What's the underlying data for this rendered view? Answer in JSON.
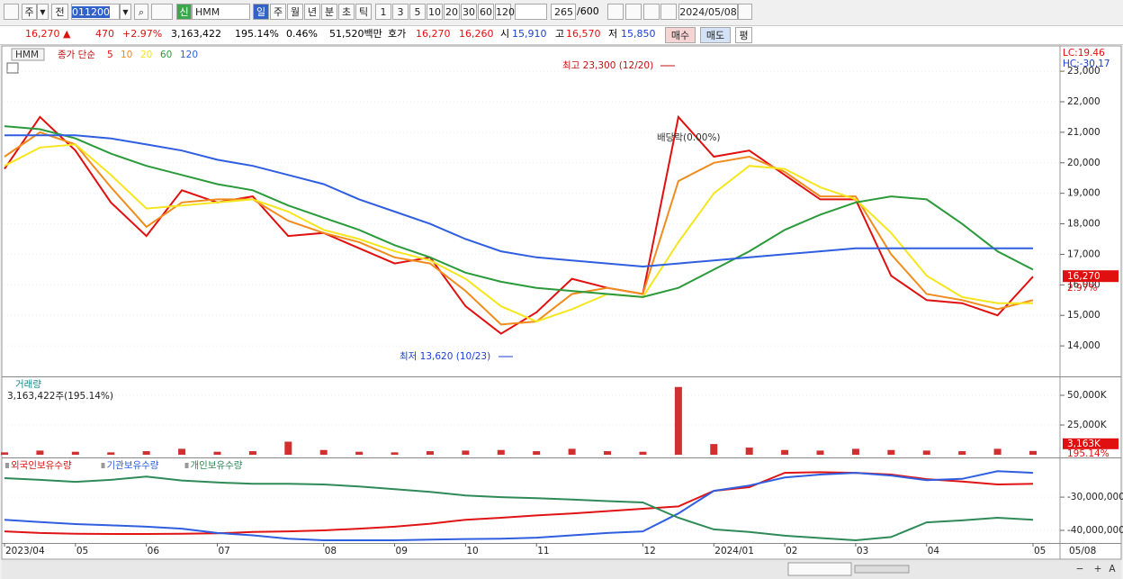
{
  "toolbar": {
    "market": "주",
    "prev": "전",
    "code": "011200",
    "tag": "신",
    "name": "HMM",
    "periods": [
      "일",
      "주",
      "월",
      "년",
      "분",
      "초",
      "틱"
    ],
    "intervals": [
      "1",
      "3",
      "5",
      "10",
      "20",
      "30",
      "60",
      "120"
    ],
    "count": "265",
    "max": "/600",
    "date": "2024/05/08"
  },
  "quote": {
    "price": "16,270 ▲",
    "change": "470",
    "change_pct": "+2.97%",
    "volume": "3,163,422",
    "volume_ratio": "195.14%",
    "turnover": "0.46%",
    "amount": "51,520백만",
    "bid_label": "호가",
    "ask": "16,270",
    "bid": "16,260",
    "open_label": "시",
    "open": "15,910",
    "high_label": "고",
    "high": "16,570",
    "low_label": "저",
    "low": "15,850",
    "buy": "매수",
    "sell": "매도",
    "avg": "평"
  },
  "bottom_bar": {
    "zoom_out": "−",
    "zoom_in": "+",
    "font": "A"
  },
  "chart_data": [
    {
      "type": "line",
      "legend_prefix": "HMM",
      "legend_label": "종가 단순",
      "categories": [
        "2023/04",
        null,
        "05",
        null,
        "06",
        null,
        "07",
        null,
        null,
        "08",
        null,
        "09",
        null,
        "10",
        null,
        "11",
        null,
        null,
        "12",
        null,
        "2024/01",
        null,
        "02",
        null,
        "03",
        null,
        "04",
        null,
        null,
        "05"
      ],
      "x_end_label": "05/08",
      "series": [
        {
          "name": "5",
          "color": "#e01010",
          "values": [
            19800,
            21500,
            20400,
            18700,
            17600,
            19100,
            18700,
            18900,
            17600,
            17700,
            17200,
            16700,
            16900,
            15300,
            14400,
            15100,
            16200,
            15900,
            15700,
            21500,
            20200,
            20400,
            19600,
            18800,
            18800,
            16300,
            15500,
            15400,
            15000,
            16270
          ]
        },
        {
          "name": "10",
          "color": "#f08c1e",
          "values": [
            20200,
            21000,
            20600,
            19200,
            17900,
            18700,
            18800,
            18800,
            18100,
            17700,
            17400,
            16900,
            16700,
            15800,
            14700,
            14800,
            15700,
            15900,
            15700,
            19400,
            20000,
            20200,
            19700,
            18900,
            18900,
            17000,
            15700,
            15500,
            15200,
            15500
          ]
        },
        {
          "name": "20",
          "color": "#f5e61e",
          "values": [
            19900,
            20500,
            20600,
            19600,
            18500,
            18600,
            18700,
            18800,
            18400,
            17800,
            17500,
            17100,
            16800,
            16200,
            15300,
            14800,
            15200,
            15700,
            15600,
            17400,
            19000,
            19900,
            19800,
            19200,
            18800,
            17700,
            16300,
            15600,
            15400,
            15400
          ]
        },
        {
          "name": "60",
          "color": "#2a9a3a",
          "values": [
            21200,
            21100,
            20800,
            20300,
            19900,
            19600,
            19300,
            19100,
            18600,
            18200,
            17800,
            17300,
            16900,
            16400,
            16100,
            15900,
            15800,
            15700,
            15600,
            15900,
            16500,
            17100,
            17800,
            18300,
            18700,
            18900,
            18800,
            18000,
            17100,
            16500
          ]
        },
        {
          "name": "120",
          "color": "#2f5fe0",
          "values": [
            20900,
            20900,
            20900,
            20800,
            20600,
            20400,
            20100,
            19900,
            19600,
            19300,
            18800,
            18400,
            18000,
            17500,
            17100,
            16900,
            16800,
            16700,
            16600,
            16700,
            16800,
            16900,
            17000,
            17100,
            17200,
            17200,
            17200,
            17200,
            17200,
            17200
          ]
        }
      ],
      "ylim": [
        13000,
        23800
      ],
      "yticks": [
        {
          "value": 14000,
          "label": "14,000"
        },
        {
          "value": 15000,
          "label": "15,000"
        },
        {
          "value": 16000,
          "label": "16,000"
        },
        {
          "value": 17000,
          "label": "17,000"
        },
        {
          "value": 18000,
          "label": "18,000"
        },
        {
          "value": 19000,
          "label": "19,000"
        },
        {
          "value": 20000,
          "label": "20,000"
        },
        {
          "value": 21000,
          "label": "21,000"
        },
        {
          "value": 22000,
          "label": "22,000"
        },
        {
          "value": 23000,
          "label": "23,000"
        }
      ],
      "annotations": {
        "high": "최고 23,300 (12/20)",
        "low": "최저 13,620 (10/23)",
        "ex_dividend": "배당락(0.00%)"
      },
      "right_labels": [
        "LC:19.46",
        "HC:-30.17"
      ],
      "price_marker": {
        "value": 16270,
        "label": "16,270"
      },
      "change_label": "2.97%"
    },
    {
      "type": "bar",
      "title": "거래량",
      "subtitle": "3,163,422주(195.14%)",
      "color": "#d03030",
      "values": [
        2000,
        3500,
        2500,
        2000,
        3000,
        5000,
        2500,
        3000,
        11000,
        4000,
        2500,
        2000,
        3000,
        3500,
        4000,
        3000,
        5000,
        3000,
        2500,
        57000,
        9000,
        6000,
        4000,
        3500,
        5000,
        4000,
        3500,
        3000,
        5000,
        3163
      ],
      "ylim": [
        0,
        64000
      ],
      "yticks": [
        {
          "value": 25000,
          "label": "25,000K"
        },
        {
          "value": 50000,
          "label": "50,000K"
        }
      ],
      "marker": {
        "value": 3163,
        "label": "3,163K"
      },
      "ratio_label": "195.14%"
    },
    {
      "type": "line",
      "series": [
        {
          "name": "외국인보유수량",
          "color": "#e01414",
          "values": [
            -40300000,
            -40800000,
            -41000000,
            -41100000,
            -41100000,
            -41000000,
            -40900000,
            -40500000,
            -40300000,
            -40000000,
            -39500000,
            -38900000,
            -38000000,
            -36800000,
            -36200000,
            -35500000,
            -34900000,
            -34200000,
            -33500000,
            -32800000,
            -28100000,
            -27000000,
            -22700000,
            -22500000,
            -22700000,
            -23200000,
            -24600000,
            -25300000,
            -26200000,
            -26000000
          ]
        },
        {
          "name": "기관보유수량",
          "color": "#2f5fe0",
          "values": [
            -36800000,
            -37500000,
            -38100000,
            -38500000,
            -38900000,
            -39500000,
            -40800000,
            -41500000,
            -42500000,
            -43000000,
            -43000000,
            -43000000,
            -42800000,
            -42600000,
            -42500000,
            -42200000,
            -41500000,
            -40800000,
            -40300000,
            -34900000,
            -28100000,
            -26500000,
            -24100000,
            -23200000,
            -22700000,
            -23500000,
            -24900000,
            -24500000,
            -22200000,
            -22700000
          ]
        },
        {
          "name": "개인보유수량",
          "color": "#2e8b57",
          "values": [
            -24300000,
            -24800000,
            -25400000,
            -24800000,
            -23800000,
            -25000000,
            -25600000,
            -26000000,
            -26000000,
            -26200000,
            -26800000,
            -27600000,
            -28400000,
            -29500000,
            -30000000,
            -30300000,
            -30700000,
            -31200000,
            -31600000,
            -36200000,
            -39700000,
            -40500000,
            -41600000,
            -42300000,
            -43000000,
            -42000000,
            -37600000,
            -37000000,
            -36200000,
            -36800000
          ]
        }
      ],
      "ylim": [
        -43800000,
        -18600000
      ],
      "yticks": [
        {
          "value": -40000000,
          "label": "-40,000,000"
        },
        {
          "value": -30000000,
          "label": "-30,000,000"
        }
      ]
    }
  ]
}
